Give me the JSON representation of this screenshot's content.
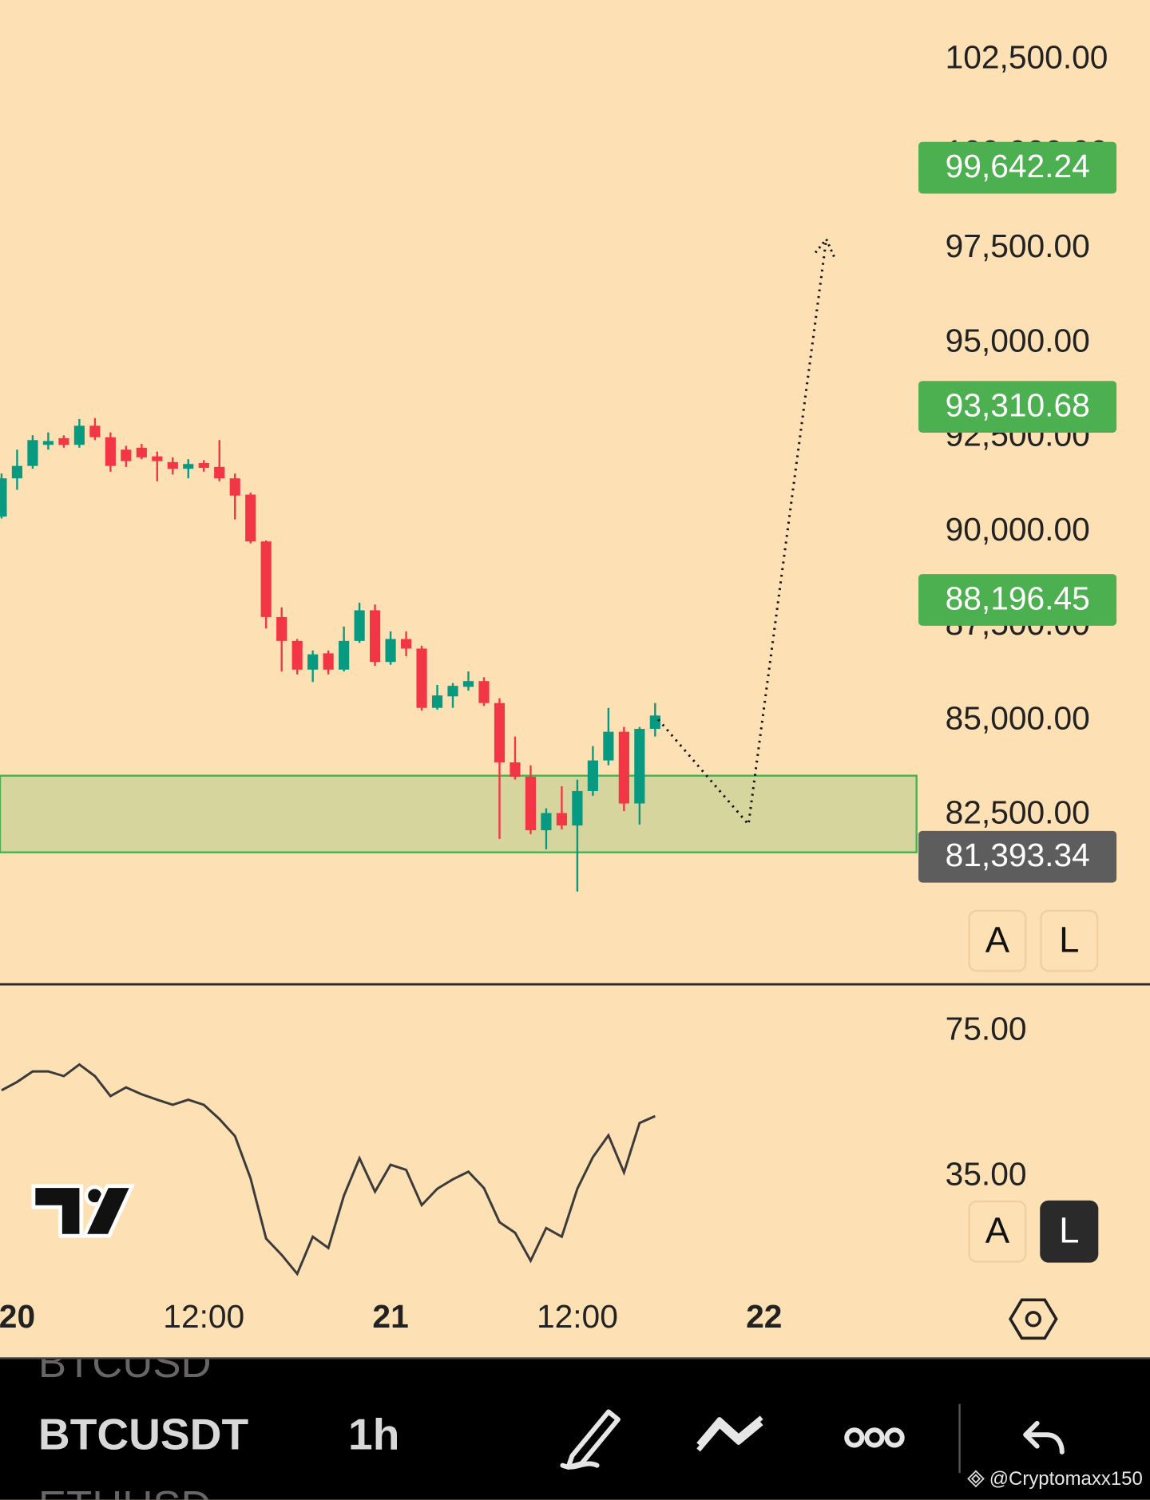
{
  "chart_data": [
    {
      "type": "candlestick",
      "x": [
        -1,
        0,
        1,
        2,
        3,
        4,
        5,
        6,
        7,
        8,
        9,
        10,
        11,
        12,
        13,
        14,
        15,
        16,
        17,
        18,
        19,
        20,
        21,
        22,
        23,
        24,
        25,
        26,
        27,
        28,
        29,
        30,
        31,
        32,
        33,
        34,
        35,
        36,
        37,
        38,
        39,
        40,
        41
      ],
      "open": [
        90403,
        91416,
        91745,
        92303,
        92480,
        92303,
        92809,
        92505,
        92176,
        92227,
        91999,
        91847,
        91669,
        91821,
        91720,
        91416,
        90986,
        89744,
        87743,
        87110,
        86350,
        86781,
        86350,
        87110,
        87921,
        86553,
        87161,
        86907,
        85337,
        85641,
        85894,
        86046,
        85464,
        83893,
        83513,
        82095,
        82551,
        82221,
        83133,
        83944,
        84704,
        82804,
        84780
      ],
      "high": [
        91543,
        92176,
        92556,
        92632,
        92556,
        92987,
        93012,
        92632,
        92277,
        92328,
        92125,
        91973,
        91923,
        91897,
        92429,
        91543,
        91036,
        89770,
        87997,
        87161,
        86857,
        86857,
        87490,
        88123,
        88073,
        87363,
        87363,
        86983,
        85945,
        85996,
        86300,
        86148,
        85590,
        84577,
        83817,
        82677,
        83260,
        83437,
        84324,
        85337,
        84830,
        84830,
        85464
      ],
      "low": [
        90352,
        91112,
        91669,
        92176,
        92227,
        92227,
        92429,
        91593,
        91720,
        91923,
        91340,
        91517,
        91416,
        91593,
        91340,
        90327,
        89694,
        87439,
        86300,
        86224,
        86021,
        86224,
        86300,
        87059,
        86451,
        86477,
        86705,
        85261,
        85286,
        85337,
        85793,
        85388,
        81867,
        83437,
        81993,
        81588,
        82120,
        80474,
        83007,
        83817,
        82601,
        82247,
        84577
      ],
      "close": [
        91416,
        91745,
        92429,
        92404,
        92303,
        92809,
        92505,
        91745,
        91872,
        91973,
        91872,
        91669,
        91796,
        91695,
        91416,
        90960,
        89744,
        87743,
        87110,
        86350,
        86755,
        86350,
        87110,
        87921,
        86553,
        87161,
        86907,
        85337,
        85666,
        85920,
        86046,
        85464,
        83893,
        83513,
        82095,
        82551,
        82221,
        83133,
        83944,
        84704,
        82804,
        84780,
        85134
      ],
      "up_color": "#089981",
      "down_color": "#f23645",
      "xlim": [
        -1.1,
        57.8
      ],
      "ylim": [
        78040,
        104080
      ],
      "yticks": [
        {
          "value": 82500,
          "label": "82,500.00"
        },
        {
          "value": 85000,
          "label": "85,000.00"
        },
        {
          "value": 87500,
          "label": "87,500.00"
        },
        {
          "value": 90000,
          "label": "90,000.00"
        },
        {
          "value": 92500,
          "label": "92,500.00"
        },
        {
          "value": 95000,
          "label": "95,000.00"
        },
        {
          "value": 97500,
          "label": "97,500.00"
        },
        {
          "value": 100000,
          "label": "100,000.00"
        },
        {
          "value": 102500,
          "label": "102,500.00"
        }
      ],
      "price_labels": [
        {
          "value": 99642.24,
          "label": "99,642.24",
          "color": "#4caf50"
        },
        {
          "value": 93310.68,
          "label": "93,310.68",
          "color": "#4caf50"
        },
        {
          "value": 88196.45,
          "label": "88,196.45",
          "color": "#4caf50"
        },
        {
          "value": 81393.34,
          "label": "81,393.34",
          "color": "#5d5d5d"
        }
      ],
      "zone": {
        "range": [
          81510,
          83540
        ],
        "color": "#4caf50"
      },
      "projection": {
        "x": [
          41.2,
          47,
          52
        ],
        "values": [
          85030,
          82250,
          97750
        ]
      }
    },
    {
      "type": "line",
      "x": [
        -1,
        0,
        1,
        2,
        3,
        4,
        5,
        6,
        7,
        8,
        9,
        10,
        11,
        12,
        13,
        14,
        15,
        16,
        17,
        18,
        19,
        20,
        21,
        22,
        23,
        24,
        25,
        26,
        27,
        28,
        29,
        30,
        31,
        32,
        33,
        34,
        35,
        36,
        37,
        38,
        39,
        40,
        41
      ],
      "values": [
        58.7,
        61.0,
        63.9,
        63.9,
        62.6,
        65.8,
        62.6,
        57.1,
        59.5,
        57.6,
        56.1,
        54.7,
        56.1,
        54.7,
        50.8,
        46.1,
        34.5,
        17.9,
        13.4,
        8.2,
        18.4,
        15.3,
        29.7,
        40.0,
        30.8,
        38.2,
        36.8,
        27.1,
        31.6,
        34.2,
        36.3,
        31.8,
        22.4,
        19.5,
        11.8,
        20.8,
        18.4,
        31.6,
        40.3,
        46.3,
        36.1,
        49.7,
        51.6
      ],
      "color": "#3b3b3b",
      "xlim": [
        -1.1,
        57.8
      ],
      "ylim": [
        4.7,
        87.6
      ],
      "yticks": [
        {
          "value": 35,
          "label": "35.00"
        },
        {
          "value": 75,
          "label": "75.00"
        }
      ],
      "xticks": [
        {
          "value": 0,
          "label": "20",
          "bold": true
        },
        {
          "value": 12,
          "label": "12:00"
        },
        {
          "value": 24,
          "label": "21",
          "bold": true
        },
        {
          "value": 36,
          "label": "12:00"
        },
        {
          "value": 48,
          "label": "22",
          "bold": true
        }
      ]
    }
  ],
  "scale_buttons": {
    "price": [
      "A",
      "L"
    ],
    "rsi": [
      "A",
      "L"
    ]
  },
  "toolbar": {
    "symbols": [
      "BTCUSD",
      "BTCUSDT",
      "ETHUSD"
    ],
    "interval": "1h",
    "watermark": "@Cryptomaxx150"
  }
}
